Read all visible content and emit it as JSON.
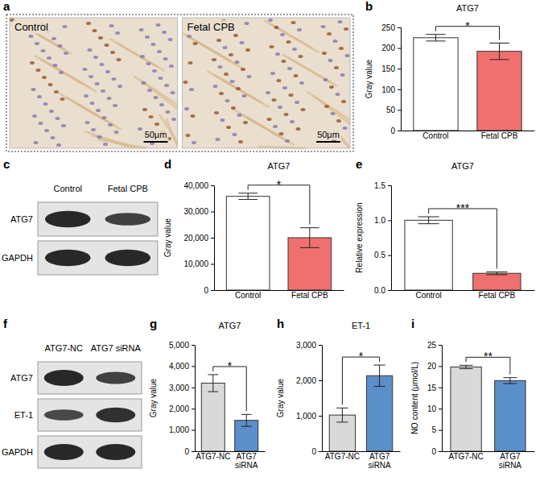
{
  "images": [
    {
      "label": "a",
      "type": "micrograph",
      "panels": [
        {
          "title": "Control",
          "scale_bar": "50μm"
        },
        {
          "title": "Fetal CPB",
          "scale_bar": "50μm"
        }
      ]
    },
    {
      "label": "c",
      "type": "western_blot",
      "columns": [
        "Control",
        "Fetal CPB"
      ],
      "rows": [
        "ATG7",
        "GAPDH"
      ]
    },
    {
      "label": "f",
      "type": "western_blot",
      "columns": [
        "ATG7-NC",
        "ATG7 siRNA"
      ],
      "rows": [
        "ATG7",
        "ET-1",
        "GAPDH"
      ]
    }
  ],
  "chart_data": [
    {
      "label": "b",
      "type": "bar",
      "title": "ATG7",
      "y_label": "Gray value",
      "categories": [
        "Control",
        "Fetal CPB"
      ],
      "values": [
        225,
        192
      ],
      "errors": [
        8,
        20
      ],
      "colors": [
        "#ffffff",
        "#f07070"
      ],
      "ylim": [
        0,
        250
      ],
      "yticks": [
        0,
        50,
        100,
        150,
        200,
        250
      ],
      "annotations": [
        "*"
      ]
    },
    {
      "label": "d",
      "type": "bar",
      "title": "ATG7",
      "y_label": "Gray value",
      "categories": [
        "Control",
        "Fetal CPB"
      ],
      "values": [
        35800,
        20000
      ],
      "errors": [
        1200,
        3800
      ],
      "colors": [
        "#ffffff",
        "#f07070"
      ],
      "ylim": [
        0,
        40000
      ],
      "yticks": [
        0,
        {
          "value": 10000,
          "label": "10,000"
        },
        {
          "value": 20000,
          "label": "20,000"
        },
        {
          "value": 30000,
          "label": "30,000"
        },
        {
          "value": 40000,
          "label": "40,000"
        }
      ],
      "annotations": [
        "*"
      ]
    },
    {
      "label": "e",
      "type": "bar",
      "title": "ATG7",
      "y_label": "Relative expression",
      "categories": [
        "Control",
        "Fetal CPB"
      ],
      "values": [
        1.0,
        0.24
      ],
      "errors": [
        0.05,
        0.02
      ],
      "colors": [
        "#ffffff",
        "#f07070"
      ],
      "ylim": [
        0,
        1.5
      ],
      "yticks": [
        {
          "value": 0,
          "label": "0.0"
        },
        0.5,
        {
          "value": 1,
          "label": "1.0"
        },
        1.5
      ],
      "annotations": [
        "***"
      ]
    },
    {
      "label": "g",
      "type": "bar",
      "title": "ATG7",
      "y_label": "Gray value",
      "categories": [
        "ATG7-NC",
        "ATG7 siRNA"
      ],
      "values": [
        3200,
        1450
      ],
      "errors": [
        400,
        280
      ],
      "colors": [
        "#d9d9d9",
        "#5b8fc9"
      ],
      "ylim": [
        0,
        5000
      ],
      "yticks": [
        0,
        {
          "value": 1000,
          "label": "1,000"
        },
        {
          "value": 2000,
          "label": "2,000"
        },
        {
          "value": 3000,
          "label": "3,000"
        },
        {
          "value": 4000,
          "label": "4,000"
        },
        {
          "value": 5000,
          "label": "5,000"
        }
      ],
      "annotations": [
        "*"
      ]
    },
    {
      "label": "h",
      "type": "bar",
      "title": "ET-1",
      "y_label": "Gray value",
      "categories": [
        "ATG7-NC",
        "ATG7 siRNA"
      ],
      "values": [
        1020,
        2130
      ],
      "errors": [
        200,
        300
      ],
      "colors": [
        "#d9d9d9",
        "#5b8fc9"
      ],
      "ylim": [
        0,
        3000
      ],
      "yticks": [
        0,
        {
          "value": 1000,
          "label": "1,000"
        },
        {
          "value": 2000,
          "label": "2,000"
        },
        {
          "value": 3000,
          "label": "3,000"
        }
      ],
      "annotations": [
        "*"
      ]
    },
    {
      "label": "i",
      "type": "bar",
      "y_label": "NO content (μmol/L)",
      "categories": [
        "ATG7-NC",
        "ATG7 siRNA"
      ],
      "values": [
        19.8,
        16.6
      ],
      "errors": [
        0.4,
        0.7
      ],
      "colors": [
        "#d9d9d9",
        "#5b8fc9"
      ],
      "ylim": [
        0,
        25
      ],
      "yticks": [
        0,
        5,
        10,
        15,
        20,
        25
      ],
      "annotations": [
        "**"
      ]
    }
  ]
}
